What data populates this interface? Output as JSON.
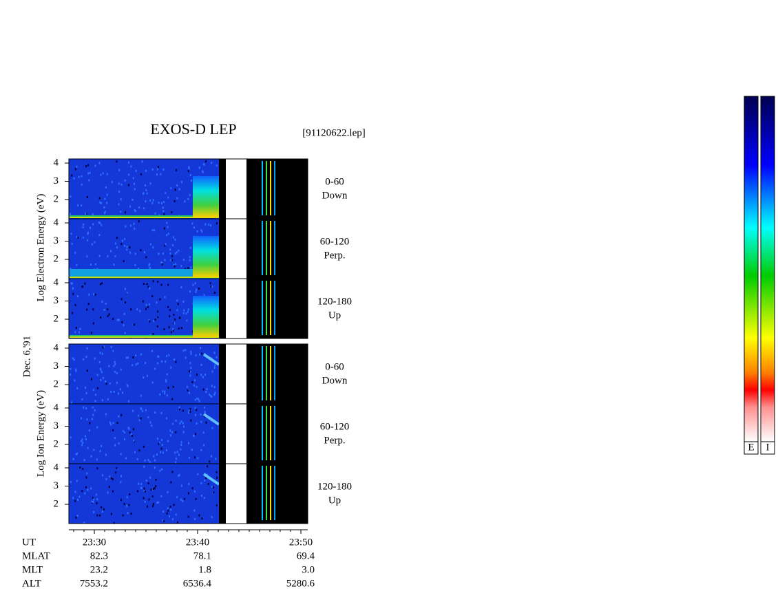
{
  "header": {
    "title": "EXOS-D LEP",
    "file": "[91120622.lep]"
  },
  "date": "Dec. 6,'91",
  "electron": {
    "axis_label": "Log  Electron  Energy (eV)",
    "panels": [
      {
        "range": "0-60",
        "direction": "Down"
      },
      {
        "range": "60-120",
        "direction": "Perp."
      },
      {
        "range": "120-180",
        "direction": "Up"
      }
    ]
  },
  "ion": {
    "axis_label": "Log  Ion  Energy (eV)",
    "panels": [
      {
        "range": "0-60",
        "direction": "Down"
      },
      {
        "range": "60-120",
        "direction": "Perp."
      },
      {
        "range": "120-180",
        "direction": "Up"
      }
    ]
  },
  "y_ticks": [
    "4",
    "3",
    "2"
  ],
  "ephemeris": {
    "rows": [
      [
        "UT",
        "23:30",
        "23:40",
        "23:50"
      ],
      [
        "MLAT",
        "82.3",
        "78.1",
        "69.4"
      ],
      [
        "MLT",
        "23.2",
        "1.8",
        "3.0"
      ],
      [
        "ALT",
        "7553.2",
        "6536.4",
        "5280.6"
      ]
    ]
  },
  "colorbars": [
    "E",
    "I"
  ]
}
